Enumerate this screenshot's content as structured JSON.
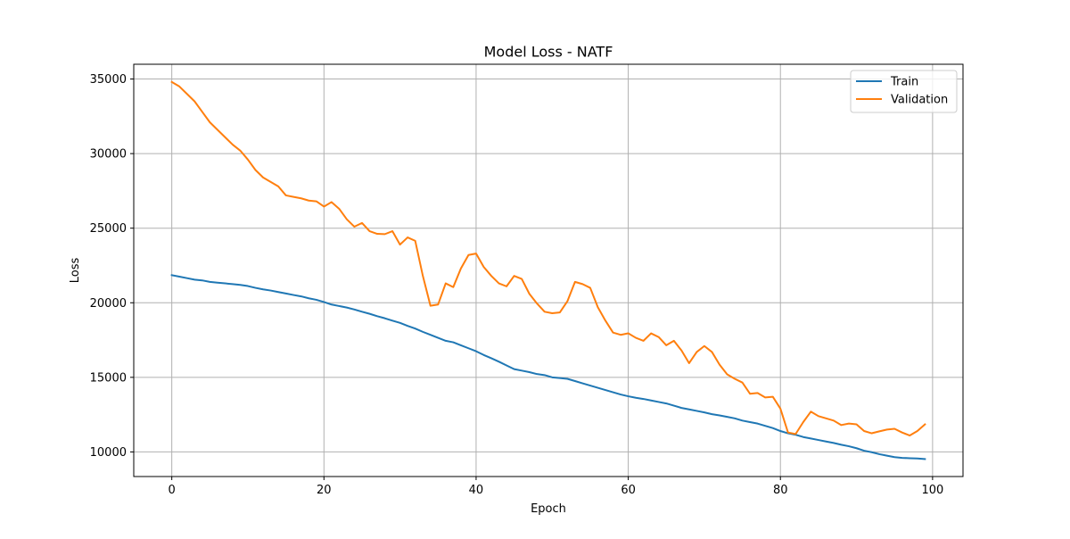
{
  "chart_data": {
    "type": "line",
    "title": "Model Loss - NATF",
    "xlabel": "Epoch",
    "ylabel": "Loss",
    "xlim": [
      -5,
      104
    ],
    "ylim": [
      8350,
      35990
    ],
    "xticks": [
      0,
      20,
      40,
      60,
      80,
      100
    ],
    "yticks": [
      10000,
      15000,
      20000,
      25000,
      30000,
      35000
    ],
    "grid": true,
    "legend_position": "top-right",
    "series": [
      {
        "name": "Train",
        "color": "#1f77b4",
        "x": [
          0,
          1,
          2,
          3,
          4,
          5,
          6,
          7,
          8,
          9,
          10,
          11,
          12,
          13,
          14,
          15,
          16,
          17,
          18,
          19,
          20,
          21,
          22,
          23,
          24,
          25,
          26,
          27,
          28,
          29,
          30,
          31,
          32,
          33,
          34,
          35,
          36,
          37,
          38,
          39,
          40,
          41,
          42,
          43,
          44,
          45,
          46,
          47,
          48,
          49,
          50,
          51,
          52,
          53,
          54,
          55,
          56,
          57,
          58,
          59,
          60,
          61,
          62,
          63,
          64,
          65,
          66,
          67,
          68,
          69,
          70,
          71,
          72,
          73,
          74,
          75,
          76,
          77,
          78,
          79,
          80,
          81,
          82,
          83,
          84,
          85,
          86,
          87,
          88,
          89,
          90,
          91,
          92,
          93,
          94,
          95,
          96,
          97,
          98,
          99
        ],
        "values": [
          21850,
          21750,
          21650,
          21550,
          21500,
          21400,
          21350,
          21300,
          21250,
          21200,
          21120,
          21000,
          20900,
          20820,
          20720,
          20620,
          20520,
          20430,
          20300,
          20200,
          20050,
          19880,
          19780,
          19680,
          19550,
          19400,
          19260,
          19100,
          18960,
          18800,
          18650,
          18450,
          18270,
          18050,
          17850,
          17650,
          17450,
          17350,
          17150,
          16950,
          16750,
          16500,
          16280,
          16050,
          15800,
          15550,
          15450,
          15350,
          15220,
          15150,
          15000,
          14950,
          14900,
          14750,
          14600,
          14450,
          14300,
          14150,
          14000,
          13850,
          13730,
          13630,
          13550,
          13450,
          13350,
          13250,
          13100,
          12950,
          12850,
          12750,
          12650,
          12530,
          12450,
          12350,
          12250,
          12100,
          12000,
          11900,
          11750,
          11600,
          11400,
          11250,
          11150,
          11000,
          10900,
          10800,
          10700,
          10600,
          10480,
          10380,
          10250,
          10080,
          9980,
          9850,
          9750,
          9650,
          9600,
          9580,
          9560,
          9520
        ]
      },
      {
        "name": "Validation",
        "color": "#ff7f0e",
        "x": [
          0,
          1,
          2,
          3,
          4,
          5,
          6,
          7,
          8,
          9,
          10,
          11,
          12,
          13,
          14,
          15,
          16,
          17,
          18,
          19,
          20,
          21,
          22,
          23,
          24,
          25,
          26,
          27,
          28,
          29,
          30,
          31,
          32,
          33,
          34,
          35,
          36,
          37,
          38,
          39,
          40,
          41,
          42,
          43,
          44,
          45,
          46,
          47,
          48,
          49,
          50,
          51,
          52,
          53,
          54,
          55,
          56,
          57,
          58,
          59,
          60,
          61,
          62,
          63,
          64,
          65,
          66,
          67,
          68,
          69,
          70,
          71,
          72,
          73,
          74,
          75,
          76,
          77,
          78,
          79,
          80,
          81,
          82,
          83,
          84,
          85,
          86,
          87,
          88,
          89,
          90,
          91,
          92,
          93,
          94,
          95,
          96,
          97,
          98,
          99
        ],
        "values": [
          34800,
          34500,
          34000,
          33500,
          32800,
          32100,
          31600,
          31100,
          30600,
          30200,
          29600,
          28900,
          28400,
          28100,
          27800,
          27200,
          27100,
          27000,
          26850,
          26800,
          26450,
          26750,
          26300,
          25600,
          25100,
          25350,
          24800,
          24620,
          24600,
          24800,
          23900,
          24380,
          24150,
          21800,
          19800,
          19880,
          21300,
          21050,
          22300,
          23200,
          23300,
          22400,
          21800,
          21300,
          21100,
          21800,
          21600,
          20600,
          19950,
          19400,
          19300,
          19350,
          20100,
          21400,
          21250,
          21000,
          19700,
          18800,
          18000,
          17850,
          17950,
          17650,
          17450,
          17950,
          17700,
          17150,
          17450,
          16800,
          15950,
          16700,
          17100,
          16700,
          15850,
          15200,
          14900,
          14650,
          13900,
          13950,
          13650,
          13700,
          12900,
          11300,
          11200,
          12000,
          12700,
          12400,
          12250,
          12100,
          11800,
          11900,
          11850,
          11400,
          11250,
          11380,
          11500,
          11550,
          11300,
          11100,
          11400,
          11850
        ]
      }
    ]
  }
}
